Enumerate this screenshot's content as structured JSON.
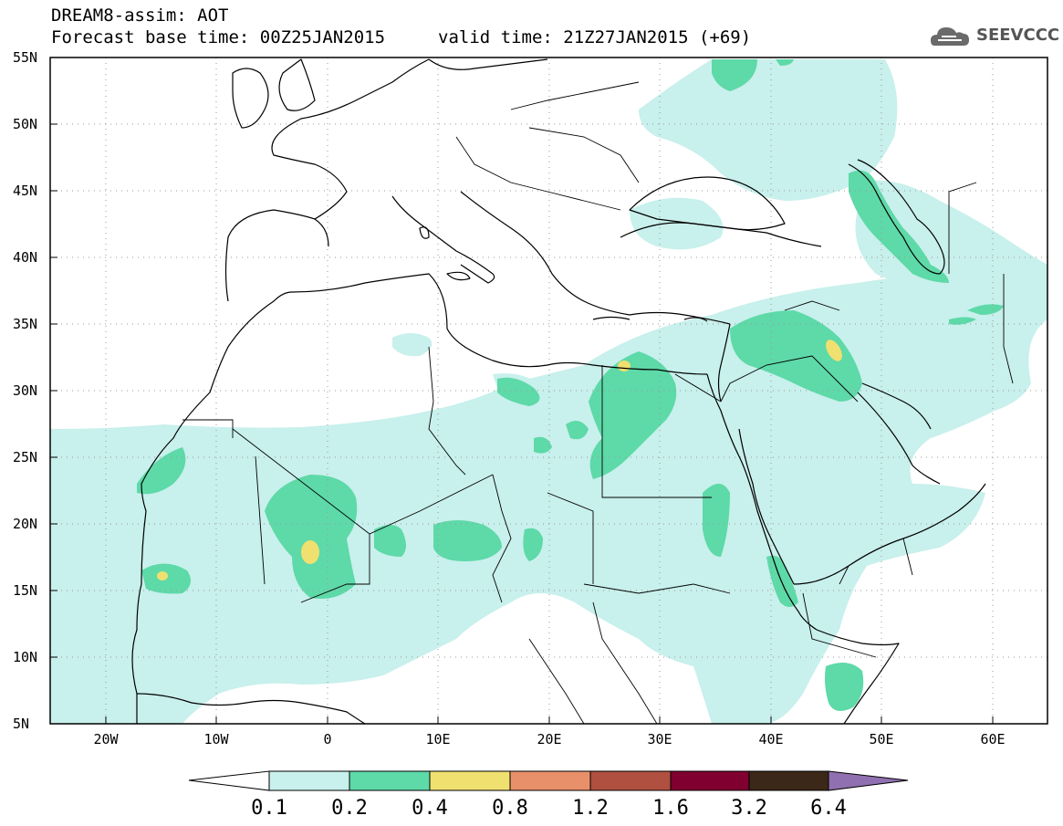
{
  "header": {
    "title": "DREAM8-assim: AOT",
    "base_time": "Forecast base time: 00Z25JAN2015",
    "valid_time": "valid time: 21Z27JAN2015 (+69)",
    "logo_text": "SEEVCCC"
  },
  "map": {
    "lat_labels": [
      "55N",
      "50N",
      "45N",
      "40N",
      "35N",
      "30N",
      "25N",
      "20N",
      "15N",
      "10N",
      "5N"
    ],
    "lon_labels": [
      "20W",
      "10W",
      "0",
      "10E",
      "20E",
      "30E",
      "40E",
      "50E",
      "60E"
    ],
    "extent": {
      "lon_min": -25,
      "lon_max": 65,
      "lat_min": 5,
      "lat_max": 55
    }
  },
  "colorbar": {
    "labels": [
      "0.1",
      "0.2",
      "0.4",
      "0.8",
      "1.2",
      "1.6",
      "3.2",
      "6.4"
    ],
    "colors": [
      "#c8f0ec",
      "#5ed9a8",
      "#f0e070",
      "#e8906a",
      "#b05040",
      "#800030",
      "#3c2818",
      "#9070b0"
    ]
  },
  "colors": {
    "level_01": "#c8f0ec",
    "level_02": "#5ed9a8",
    "level_04": "#f0e070",
    "coast": "#000000"
  }
}
